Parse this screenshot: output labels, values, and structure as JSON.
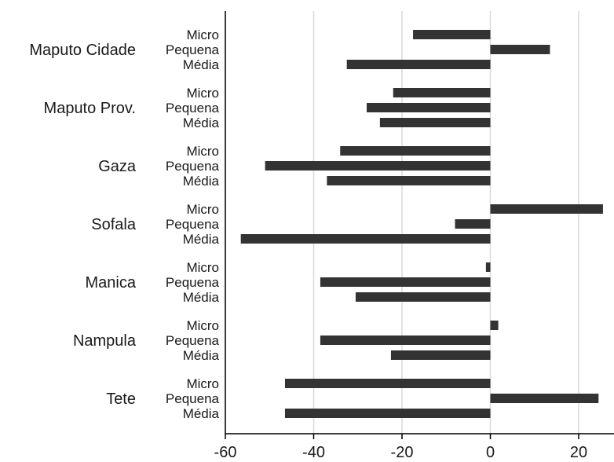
{
  "chart_data": {
    "type": "bar",
    "orientation": "horizontal",
    "title": "",
    "xlabel": "",
    "ylabel": "",
    "xlim": [
      -60,
      28
    ],
    "xticks": [
      -60,
      -40,
      -20,
      0,
      20
    ],
    "grid": true,
    "legend": "none",
    "bar_color": "#333333",
    "grid_color": "#d9d9d9",
    "groups": [
      {
        "name": "Maputo Cidade",
        "bars": [
          {
            "label": "Micro",
            "value": -17.5
          },
          {
            "label": "Pequena",
            "value": 13.5
          },
          {
            "label": "Média",
            "value": -32.5
          }
        ]
      },
      {
        "name": "Maputo Prov.",
        "bars": [
          {
            "label": "Micro",
            "value": -22.0
          },
          {
            "label": "Pequena",
            "value": -28.0
          },
          {
            "label": "Média",
            "value": -25.0
          }
        ]
      },
      {
        "name": "Gaza",
        "bars": [
          {
            "label": "Micro",
            "value": -34.0
          },
          {
            "label": "Pequena",
            "value": -51.0
          },
          {
            "label": "Média",
            "value": -37.0
          }
        ]
      },
      {
        "name": "Sofala",
        "bars": [
          {
            "label": "Micro",
            "value": 25.5
          },
          {
            "label": "Pequena",
            "value": -8.0
          },
          {
            "label": "Média",
            "value": -56.5
          }
        ]
      },
      {
        "name": "Manica",
        "bars": [
          {
            "label": "Micro",
            "value": -1.0
          },
          {
            "label": "Pequena",
            "value": -38.5
          },
          {
            "label": "Média",
            "value": -30.5
          }
        ]
      },
      {
        "name": "Nampula",
        "bars": [
          {
            "label": "Micro",
            "value": 1.8
          },
          {
            "label": "Pequena",
            "value": -38.5
          },
          {
            "label": "Média",
            "value": -22.5
          }
        ]
      },
      {
        "name": "Tete",
        "bars": [
          {
            "label": "Micro",
            "value": -46.5
          },
          {
            "label": "Pequena",
            "value": 24.5
          },
          {
            "label": "Média",
            "value": -46.5
          }
        ]
      }
    ]
  }
}
